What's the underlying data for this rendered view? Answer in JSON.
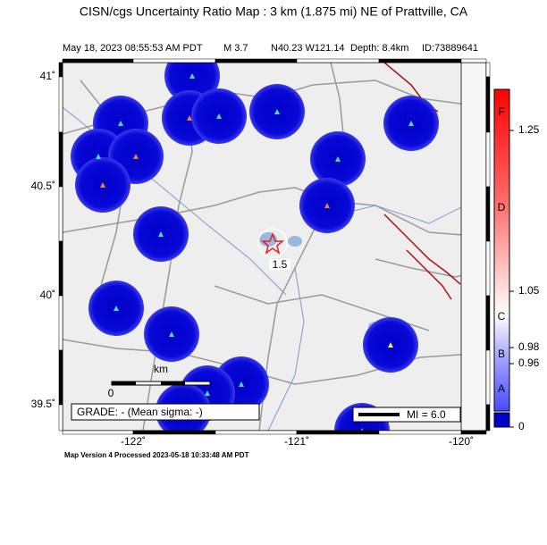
{
  "header": {
    "title": "CISN/cgs Uncertainty Ratio Map : 3 km (1.875 mi) NE of Prattville, CA",
    "date": "May 18, 2023 08:55:53 AM PDT",
    "magnitude": "M 3.7",
    "location": "N40.23 W121.14",
    "depth": "Depth: 8.4km",
    "id": "ID:73889641"
  },
  "map": {
    "lat_labels": [
      "41˚",
      "40.5˚",
      "40˚",
      "39.5˚"
    ],
    "lon_labels": [
      "-122˚",
      "-121˚",
      "-120˚"
    ],
    "contour_label": "1.5",
    "scale_unit": "km",
    "scale_zero": "0",
    "grade": "GRADE: - (Mean sigma: -)",
    "mi_legend": "MI = 6.0"
  },
  "colorbar": {
    "grades": [
      "F",
      "D",
      "C",
      "B",
      "A"
    ],
    "values": [
      "1.25",
      "1.05",
      "0.98",
      "0.96",
      "0"
    ]
  },
  "footer": "Map Version 4 Processed 2023-05-18 10:33:48 AM PDT"
}
